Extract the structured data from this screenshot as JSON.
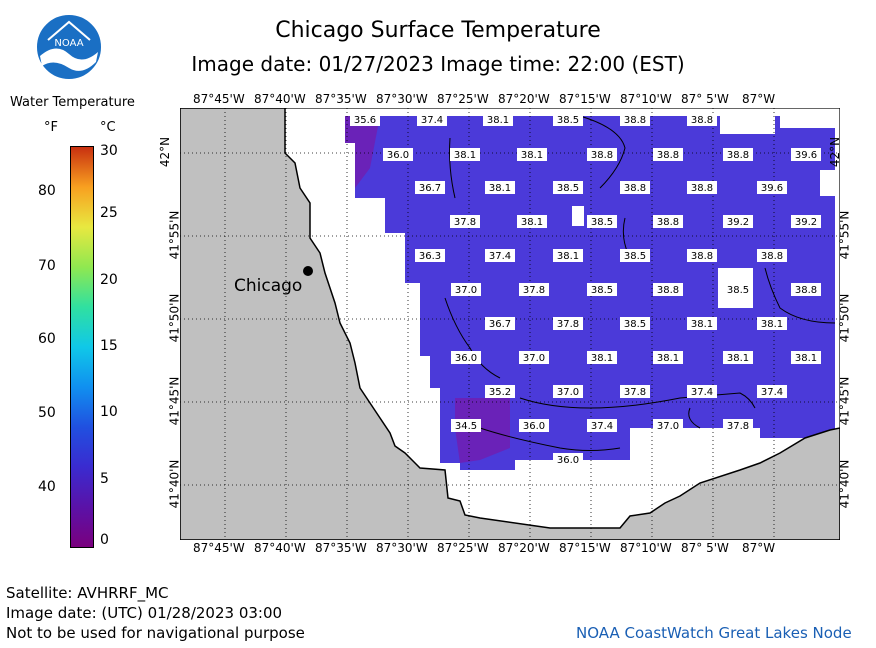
{
  "header": {
    "title": "Chicago Surface Temperature",
    "subtitle": "Image date: 01/27/2023    Image time: 22:00 (EST)"
  },
  "logo": {
    "text": "NOAA",
    "icon": "noaa-logo-icon",
    "colors": {
      "outer": "#1a6fc4",
      "inner": "#ffffff"
    }
  },
  "legend": {
    "title": "Water Temperature",
    "unit_f": "°F",
    "unit_c": "°C",
    "f_ticks": [
      "80",
      "70",
      "60",
      "50",
      "40"
    ],
    "c_ticks": [
      "30",
      "25",
      "20",
      "15",
      "10",
      "5",
      "0"
    ]
  },
  "map": {
    "city_label": "Chicago",
    "lon_labels": [
      "87°45'W",
      "87°40'W",
      "87°35'W",
      "87°30'W",
      "87°25'W",
      "87°20'W",
      "87°15'W",
      "87°10'W",
      "87° 5'W",
      "87°W"
    ],
    "lat_labels": [
      "42°N",
      "41°55'N",
      "41°50'N",
      "41°45'N",
      "41°40'N"
    ],
    "colors": {
      "land": "#c0c0c0",
      "water_cold": "#7b1fa2",
      "water_mid": "#4b3ad9",
      "water_warm": "#3f51e6"
    },
    "temps": [
      "35.6",
      "37.4",
      "38.1",
      "38.5",
      "38.8",
      "38.8",
      "36.0",
      "38.1",
      "38.1",
      "38.8",
      "38.8",
      "38.8",
      "39.6",
      "36.7",
      "38.1",
      "38.5",
      "38.8",
      "38.8",
      "39.6",
      "37.8",
      "38.1",
      "38.5",
      "38.8",
      "39.2",
      "39.2",
      "36.3",
      "37.4",
      "38.1",
      "38.5",
      "38.8",
      "38.8",
      "37.0",
      "37.8",
      "38.5",
      "38.8",
      "38.5",
      "38.8",
      "36.7",
      "37.8",
      "38.5",
      "38.1",
      "38.1",
      "36.0",
      "37.0",
      "38.1",
      "38.1",
      "38.1",
      "38.1",
      "35.2",
      "37.0",
      "37.8",
      "37.4",
      "37.4",
      "34.5",
      "36.0",
      "37.4",
      "37.0",
      "37.8",
      "36.0"
    ]
  },
  "footer": {
    "satellite": "Satellite: AVHRRF_MC",
    "utc_date": "Image date: (UTC) 01/28/2023  03:00",
    "disclaimer": "Not to be used for navigational purpose",
    "credit": "NOAA CoastWatch Great Lakes Node"
  }
}
